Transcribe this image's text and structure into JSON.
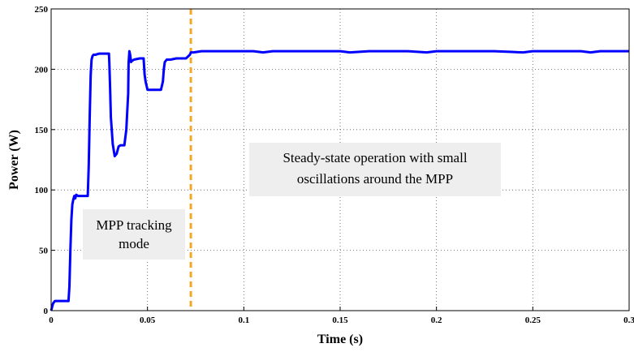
{
  "chart_data": {
    "type": "line",
    "title": "",
    "xlabel": "Time (s)",
    "ylabel": "Power (W)",
    "xlim": [
      0,
      0.3
    ],
    "ylim": [
      0,
      250
    ],
    "grid": true,
    "x_ticks": [
      "0",
      "0.05",
      "0.1",
      "0.15",
      "0.2",
      "0.25",
      "0.3"
    ],
    "y_ticks": [
      "0",
      "50",
      "100",
      "150",
      "200",
      "250"
    ],
    "line_color": "#0000ff",
    "divider": {
      "x": 0.0725,
      "color": "#f5a623",
      "style": "dashed"
    },
    "annotations": [
      {
        "lines": [
          "MPP tracking",
          "mode"
        ]
      },
      {
        "lines": [
          "Steady-state operation with small",
          "oscillations around the MPP"
        ]
      }
    ],
    "series": [
      {
        "x": [
          0,
          0.0005,
          0.001,
          0.002,
          0.003,
          0.006,
          0.009,
          0.0095,
          0.01,
          0.0105,
          0.011,
          0.0115,
          0.012,
          0.0125,
          0.013,
          0.014,
          0.016,
          0.018,
          0.019,
          0.0195,
          0.02,
          0.0205,
          0.021,
          0.0215,
          0.022,
          0.023,
          0.025,
          0.028,
          0.03,
          0.0302,
          0.0306,
          0.031,
          0.032,
          0.033,
          0.034,
          0.035,
          0.036,
          0.037,
          0.038,
          0.039,
          0.04,
          0.0402,
          0.0406,
          0.041,
          0.0415,
          0.042,
          0.043,
          0.046,
          0.048,
          0.0485,
          0.049,
          0.05,
          0.052,
          0.055,
          0.057,
          0.058,
          0.0585,
          0.059,
          0.06,
          0.062,
          0.065,
          0.068,
          0.07,
          0.072,
          0.0725,
          0.074,
          0.078,
          0.085,
          0.095,
          0.105,
          0.11,
          0.115,
          0.125,
          0.135,
          0.15,
          0.155,
          0.165,
          0.185,
          0.195,
          0.2,
          0.21,
          0.23,
          0.245,
          0.25,
          0.26,
          0.275,
          0.28,
          0.285,
          0.295,
          0.3
        ],
        "y": [
          0,
          3,
          6,
          8,
          8,
          8,
          8,
          20,
          50,
          75,
          88,
          92,
          95,
          93,
          96,
          95,
          95,
          95,
          95,
          120,
          160,
          195,
          208,
          211,
          212,
          212,
          213,
          213,
          213,
          205,
          185,
          160,
          138,
          128,
          130,
          136,
          137,
          137,
          137,
          150,
          180,
          205,
          215,
          212,
          206,
          207,
          208,
          209,
          209,
          196,
          190,
          183,
          183,
          183,
          183,
          190,
          200,
          206,
          208,
          208,
          209,
          209,
          209,
          212,
          214,
          214,
          215,
          215,
          215,
          215,
          214,
          215,
          215,
          215,
          215,
          214,
          215,
          215,
          214,
          215,
          215,
          215,
          214,
          215,
          215,
          215,
          214,
          215,
          215,
          215
        ]
      }
    ]
  }
}
